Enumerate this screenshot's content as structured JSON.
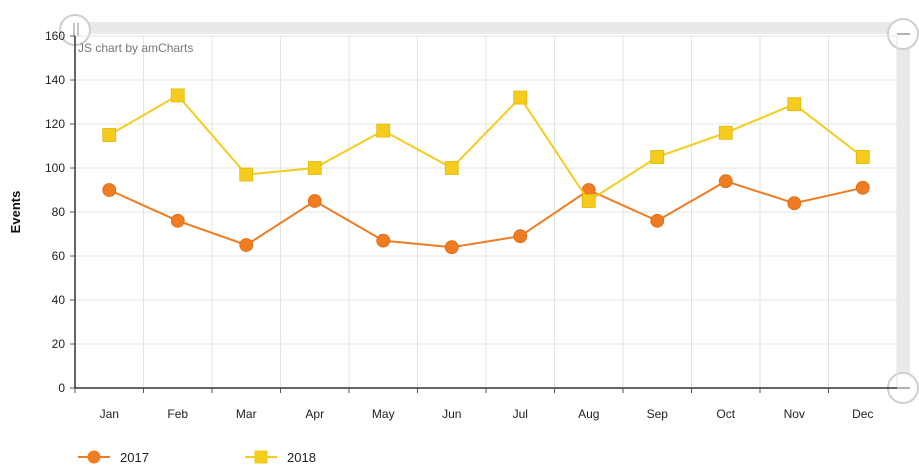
{
  "chart_data": {
    "type": "line",
    "credit": "JS chart by amCharts",
    "ylabel": "Events",
    "xlabel": "",
    "ylim": [
      0,
      160
    ],
    "yticks": [
      0,
      20,
      40,
      60,
      80,
      100,
      120,
      140,
      160
    ],
    "grid": true,
    "legend_position": "bottom-left",
    "categories": [
      "Jan",
      "Feb",
      "Mar",
      "Apr",
      "May",
      "Jun",
      "Jul",
      "Aug",
      "Sep",
      "Oct",
      "Nov",
      "Dec"
    ],
    "series": [
      {
        "name": "2017",
        "marker": "circle",
        "color": "#f07c22",
        "values": [
          90,
          76,
          65,
          85,
          67,
          64,
          69,
          90,
          76,
          94,
          84,
          91
        ]
      },
      {
        "name": "2018",
        "marker": "square",
        "color": "#f5cc1e",
        "values": [
          115,
          133,
          97,
          100,
          117,
          100,
          132,
          85,
          105,
          116,
          129,
          105
        ]
      }
    ]
  }
}
